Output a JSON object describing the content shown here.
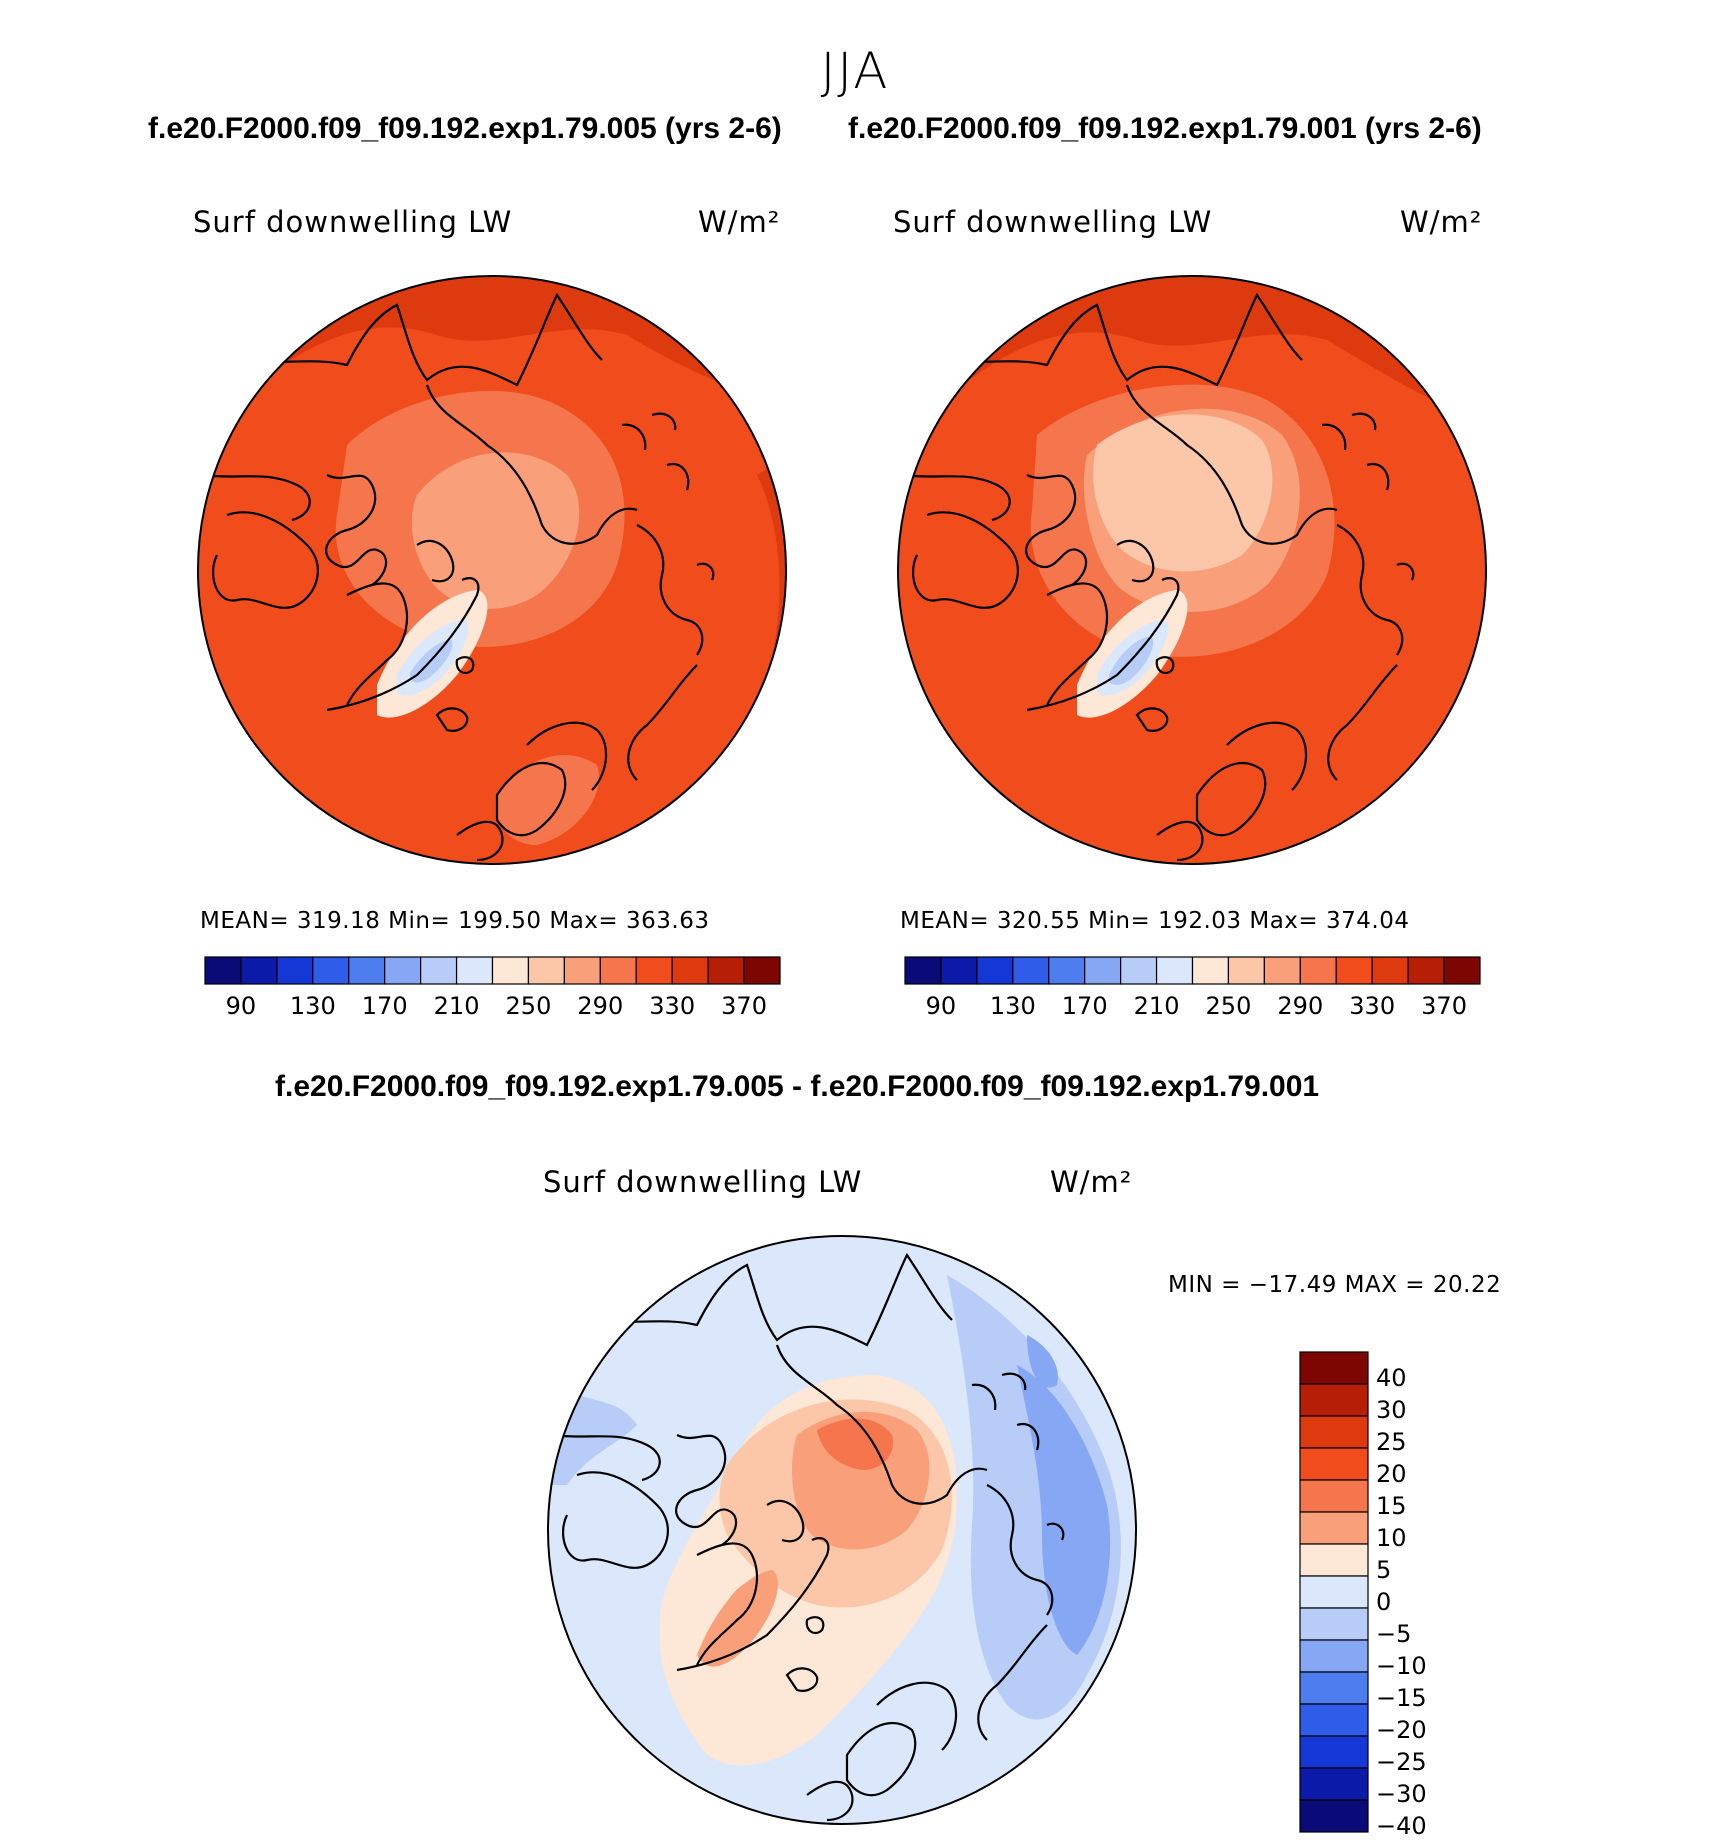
{
  "figure": {
    "season": "JJA",
    "top_title_left": "f.e20.F2000.f09_f09.192.exp1.79.005 (yrs 2-6)",
    "top_title_right": "f.e20.F2000.f09_f09.192.exp1.79.001 (yrs 2-6)",
    "diff_title": "f.e20.F2000.f09_f09.192.exp1.79.005 - f.e20.F2000.f09_f09.192.exp1.79.001"
  },
  "panels": {
    "left": {
      "variable": "Surf downwelling LW",
      "units": "W/m²",
      "stats": "MEAN= 319.18   Min= 199.50   Max= 363.63"
    },
    "right": {
      "variable": "Surf downwelling LW",
      "units": "W/m²",
      "stats": "MEAN= 320.55   Min= 192.03   Max= 374.04"
    },
    "diff": {
      "variable": "Surf downwelling LW",
      "units": "W/m²",
      "stats": "MIN = −17.49 MAX =  20.22"
    }
  },
  "colorbar_abs": {
    "colors": [
      "#0a0a78",
      "#0b1aa8",
      "#1537d6",
      "#2f5ce8",
      "#4e7df0",
      "#86a7f4",
      "#b7cdf8",
      "#dbe7fb",
      "#fde7d6",
      "#fcc6a8",
      "#f9a07a",
      "#f5764c",
      "#f04c1c",
      "#dd3a10",
      "#b71e06",
      "#7d0603"
    ],
    "ticks": [
      "90",
      "130",
      "170",
      "210",
      "250",
      "290",
      "330",
      "370"
    ]
  },
  "colorbar_diff": {
    "colors": [
      "#7d0603",
      "#b71e06",
      "#dd3a10",
      "#f04c1c",
      "#f5764c",
      "#f9a07a",
      "#fde7d6",
      "#dbe7fb",
      "#b7cdf8",
      "#86a7f4",
      "#4e7df0",
      "#2f5ce8",
      "#1537d6",
      "#0b1aa8",
      "#0a0a78"
    ],
    "ticks": [
      "40",
      "30",
      "25",
      "20",
      "15",
      "10",
      "5",
      "0",
      "−5",
      "−10",
      "−15",
      "−20",
      "−25",
      "−30",
      "−40"
    ]
  },
  "map_colors": {
    "abs_base": "#f04c1c",
    "abs_dark": "#dd3a10",
    "abs_darker": "#b71e06",
    "abs_mid": "#f5764c",
    "abs_light": "#f9a07a",
    "abs_pale": "#fcc6a8",
    "abs_cream": "#fde7d6",
    "abs_lightblue": "#dbe7fb",
    "abs_blue": "#b7cdf8",
    "diff_base": "#dbe7fb",
    "diff_blue": "#b7cdf8",
    "diff_midblue": "#86a7f4",
    "diff_cream": "#fde7d6",
    "diff_pale": "#fcc6a8",
    "diff_light": "#f9a07a",
    "diff_mid": "#f5764c"
  }
}
